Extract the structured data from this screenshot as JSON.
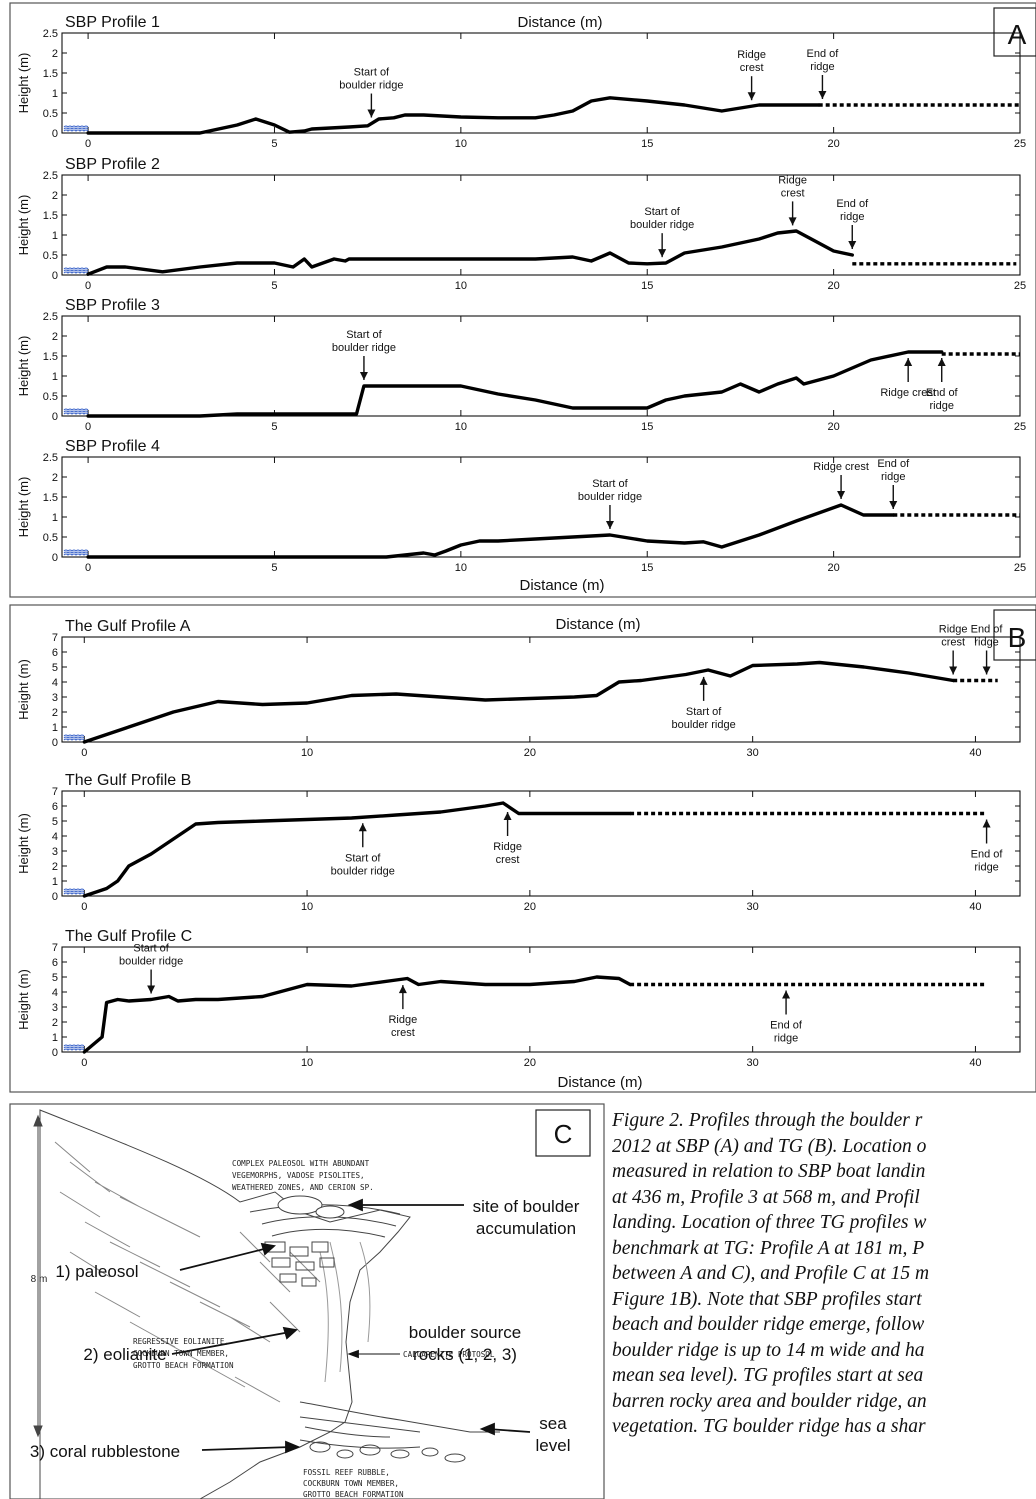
{
  "panelA": {
    "letter": "A",
    "top_xlabel": "Distance (m)",
    "bottom_xlabel": "Distance (m)",
    "ylabel": "Height (m)",
    "x_ticks": [
      "0",
      "5",
      "10",
      "15",
      "20",
      "25"
    ],
    "y_ticks": [
      "0",
      "0.5",
      "1",
      "1.5",
      "2",
      "2.5"
    ],
    "profiles": [
      {
        "title": "SBP Profile 1",
        "annotations": [
          {
            "text": "Start of\nboulder ridge",
            "x": 7.6
          },
          {
            "text": "Ridge\ncrest",
            "x": 17.8
          },
          {
            "text": "End of\nridge",
            "x": 19.7
          }
        ]
      },
      {
        "title": "SBP Profile 2",
        "annotations": [
          {
            "text": "Start of\nboulder ridge",
            "x": 15.4
          },
          {
            "text": "Ridge\ncrest",
            "x": 18.9
          },
          {
            "text": "End of\nridge",
            "x": 20.5
          }
        ]
      },
      {
        "title": "SBP Profile 3",
        "annotations": [
          {
            "text": "Start of\nboulder ridge",
            "x": 7.4
          },
          {
            "text": "Ridge crest",
            "x": 22.0
          },
          {
            "text": "End of\nridge",
            "x": 22.9
          }
        ]
      },
      {
        "title": "SBP Profile 4",
        "annotations": [
          {
            "text": "Start of\nboulder ridge",
            "x": 14.0
          },
          {
            "text": "Ridge crest",
            "x": 20.2
          },
          {
            "text": "End of\nridge",
            "x": 21.6
          }
        ]
      }
    ]
  },
  "panelB": {
    "letter": "B",
    "top_xlabel": "Distance (m)",
    "bottom_xlabel": "Distance (m)",
    "ylabel": "Height (m)",
    "x_ticks": [
      "0",
      "10",
      "20",
      "30",
      "40"
    ],
    "y_ticks": [
      "0",
      "1",
      "2",
      "3",
      "4",
      "5",
      "6",
      "7"
    ],
    "profiles": [
      {
        "title": "The Gulf Profile A",
        "annotations": [
          {
            "text": "Start of\nboulder ridge",
            "x": 27.8
          },
          {
            "text": "Ridge\ncrest",
            "x": 39.0
          },
          {
            "text": "End of\nridge",
            "x": 40.5
          }
        ]
      },
      {
        "title": "The Gulf Profile B",
        "annotations": [
          {
            "text": "Start of\nboulder ridge",
            "x": 12.5
          },
          {
            "text": "Ridge\ncrest",
            "x": 19.0
          },
          {
            "text": "End of\nridge",
            "x": 40.5
          }
        ]
      },
      {
        "title": "The Gulf Profile C",
        "annotations": [
          {
            "text": "Start of\nboulder ridge",
            "x": 3.0
          },
          {
            "text": "Ridge\ncrest",
            "x": 14.3
          },
          {
            "text": "End of\nridge",
            "x": 31.5
          }
        ]
      }
    ]
  },
  "panelC": {
    "letter": "C",
    "scale_label": "8 m",
    "labels": {
      "paleosol_desc": "COMPLEX PALEOSOL WITH ABUNDANT\nVEGEMORPHS, VADOSE PISOLITES,\nWEATHERED ZONES, AND CERION SP.",
      "site": "site of boulder\naccumulation",
      "paleosol": "1) paleosol",
      "eolianite_desc": "REGRESSIVE EOLIANITE,\nCOCKBURN TOWN MEMBER,\nGROTTO BEACH FORMATION",
      "source": "boulder source\nrocks (1, 2, 3)",
      "eolianite": "2) eolianite",
      "protosol": "CALCARENITE PROTOSOL",
      "rubblestone": "3) coral rubblestone",
      "sea_level": "sea\nlevel",
      "reef_desc": "FOSSIL REEF RUBBLE,\nCOCKBURN TOWN MEMBER,\nGROTTO BEACH FORMATION"
    }
  },
  "caption": {
    "lines": [
      "Figure 2. Profiles through the boulder r",
      "2012 at SBP (A) and TG (B). Location o",
      "measured in relation to SBP boat landin",
      "at 436 m, Profile 3 at 568 m, and Profil",
      "landing. Location of three TG profiles w",
      "benchmark at TG: Profile A at 181 m, P",
      "between A and C), and Profile C at 15 m",
      "Figure 1B). Note that SBP profiles start",
      "beach and boulder ridge emerge, follow",
      "boulder ridge is up to 14 m wide and ha",
      "mean sea level). TG profiles start at sea",
      "barren rocky area and boulder ridge, an",
      "vegetation. TG boulder ridge has a shar"
    ]
  },
  "chart_data": [
    {
      "type": "line",
      "title": "SBP Profile 1",
      "xlabel": "Distance (m)",
      "ylabel": "Height (m)",
      "xlim": [
        -0.7,
        25
      ],
      "ylim": [
        0,
        2.5
      ],
      "series": [
        {
          "name": "",
          "style": "solid",
          "x": [
            0,
            3,
            4,
            4.5,
            5,
            5.4,
            5.8,
            6,
            7,
            7.5,
            7.8,
            8.2,
            8.5,
            9,
            10,
            11,
            12,
            12.5,
            13,
            13.5,
            14,
            15,
            16,
            17,
            18,
            19.6
          ],
          "y": [
            0,
            0,
            0.2,
            0.35,
            0.2,
            0.02,
            0.05,
            0.1,
            0.15,
            0.18,
            0.35,
            0.38,
            0.45,
            0.45,
            0.4,
            0.38,
            0.38,
            0.45,
            0.55,
            0.8,
            0.88,
            0.8,
            0.7,
            0.55,
            0.7,
            0.7
          ]
        },
        {
          "name": "",
          "style": "dotted",
          "x": [
            19.6,
            25
          ],
          "y": [
            0.7,
            0.7
          ]
        }
      ]
    },
    {
      "type": "line",
      "title": "SBP Profile 2",
      "xlabel": "Distance (m)",
      "ylabel": "Height (m)",
      "xlim": [
        -0.7,
        25
      ],
      "ylim": [
        0,
        2.5
      ],
      "series": [
        {
          "name": "",
          "style": "solid",
          "x": [
            0,
            0.5,
            1,
            2,
            3,
            4,
            5,
            5.5,
            5.8,
            6,
            6.3,
            6.6,
            6.9,
            7,
            8,
            10,
            12,
            13,
            13.5,
            14,
            14.5,
            15,
            15.5,
            16,
            17,
            18,
            18.5,
            19,
            19.5,
            20,
            20.5
          ],
          "y": [
            0.02,
            0.2,
            0.2,
            0.08,
            0.2,
            0.3,
            0.3,
            0.2,
            0.4,
            0.2,
            0.3,
            0.4,
            0.35,
            0.4,
            0.4,
            0.4,
            0.4,
            0.45,
            0.35,
            0.55,
            0.3,
            0.28,
            0.3,
            0.55,
            0.7,
            0.9,
            1.05,
            1.1,
            0.85,
            0.6,
            0.5
          ]
        },
        {
          "name": "",
          "style": "dotted",
          "x": [
            20.5,
            24.9
          ],
          "y": [
            0.28,
            0.28
          ]
        }
      ]
    },
    {
      "type": "line",
      "title": "SBP Profile 3",
      "xlabel": "Distance (m)",
      "ylabel": "Height (m)",
      "xlim": [
        -0.7,
        25
      ],
      "ylim": [
        0,
        2.5
      ],
      "series": [
        {
          "name": "",
          "style": "solid",
          "x": [
            0,
            3,
            4,
            7.2,
            7.4,
            7.8,
            10,
            11,
            12,
            13,
            14,
            15,
            15.5,
            16,
            17,
            17.5,
            18,
            18.5,
            19,
            19.2,
            20,
            21,
            22,
            22.9
          ],
          "y": [
            0,
            0,
            0.05,
            0.05,
            0.75,
            0.75,
            0.75,
            0.55,
            0.4,
            0.2,
            0.2,
            0.2,
            0.4,
            0.5,
            0.6,
            0.8,
            0.6,
            0.8,
            0.95,
            0.8,
            1.0,
            1.4,
            1.6,
            1.6
          ]
        },
        {
          "name": "",
          "style": "dotted",
          "x": [
            22.9,
            25
          ],
          "y": [
            1.55,
            1.55
          ]
        }
      ]
    },
    {
      "type": "line",
      "title": "SBP Profile 4",
      "xlabel": "Distance (m)",
      "ylabel": "Height (m)",
      "xlim": [
        -0.7,
        25
      ],
      "ylim": [
        0,
        2.5
      ],
      "series": [
        {
          "name": "",
          "style": "solid",
          "x": [
            0,
            8,
            9,
            9.3,
            9.6,
            10,
            10.5,
            11,
            12,
            13,
            14,
            15,
            16,
            16.5,
            17,
            18,
            19,
            20.2,
            20.8,
            21.6
          ],
          "y": [
            0,
            0,
            0.1,
            0.05,
            0.15,
            0.3,
            0.4,
            0.4,
            0.45,
            0.5,
            0.55,
            0.4,
            0.35,
            0.38,
            0.25,
            0.55,
            0.9,
            1.3,
            1.05,
            1.05
          ]
        },
        {
          "name": "",
          "style": "dotted",
          "x": [
            21.6,
            25
          ],
          "y": [
            1.05,
            1.05
          ]
        }
      ]
    },
    {
      "type": "line",
      "title": "The Gulf Profile A",
      "xlabel": "Distance (m)",
      "ylabel": "Height (m)",
      "xlim": [
        -1,
        42
      ],
      "ylim": [
        0,
        7
      ],
      "series": [
        {
          "name": "",
          "style": "solid",
          "x": [
            0,
            2,
            4,
            6,
            8,
            10,
            12,
            14,
            16,
            18,
            20,
            22,
            23,
            24,
            25,
            26,
            27,
            28,
            29,
            30,
            32,
            33,
            35,
            37,
            39
          ],
          "y": [
            0,
            1,
            2,
            2.7,
            2.5,
            2.6,
            3.1,
            3.2,
            3.0,
            2.8,
            2.9,
            3.0,
            3.1,
            4.0,
            4.1,
            4.3,
            4.5,
            4.8,
            4.4,
            5.1,
            5.2,
            5.3,
            5.0,
            4.6,
            4.1
          ]
        },
        {
          "name": "",
          "style": "dotted",
          "x": [
            39,
            41
          ],
          "y": [
            4.1,
            4.1
          ]
        }
      ]
    },
    {
      "type": "line",
      "title": "The Gulf Profile B",
      "xlabel": "Distance (m)",
      "ylabel": "Height (m)",
      "xlim": [
        -1,
        42
      ],
      "ylim": [
        0,
        7
      ],
      "series": [
        {
          "name": "",
          "style": "solid",
          "x": [
            0,
            1,
            1.5,
            2,
            3,
            4,
            5,
            6,
            8,
            10,
            12,
            14,
            16,
            18,
            18.8,
            19.5,
            24.5
          ],
          "y": [
            0,
            0.5,
            1.0,
            2.0,
            2.8,
            3.8,
            4.8,
            4.9,
            5.0,
            5.1,
            5.2,
            5.4,
            5.6,
            6.0,
            6.2,
            5.5,
            5.5
          ]
        },
        {
          "name": "",
          "style": "dotted",
          "x": [
            24.5,
            40.5
          ],
          "y": [
            5.5,
            5.5
          ]
        }
      ]
    },
    {
      "type": "line",
      "title": "The Gulf Profile C",
      "xlabel": "Distance (m)",
      "ylabel": "Height (m)",
      "xlim": [
        -1,
        42
      ],
      "ylim": [
        0,
        7
      ],
      "series": [
        {
          "name": "",
          "style": "solid",
          "x": [
            0,
            0.8,
            1.0,
            1.5,
            2,
            3,
            3.8,
            4.2,
            5,
            6,
            8,
            10,
            12,
            14,
            14.5,
            15,
            16,
            18,
            20,
            22,
            23,
            24,
            24.5
          ],
          "y": [
            0,
            1.0,
            3.3,
            3.5,
            3.4,
            3.5,
            3.7,
            3.4,
            3.5,
            3.5,
            3.7,
            4.5,
            4.4,
            4.8,
            4.9,
            4.5,
            4.7,
            4.5,
            4.5,
            4.7,
            5.0,
            4.9,
            4.5
          ]
        },
        {
          "name": "",
          "style": "dotted",
          "x": [
            24.5,
            40.5
          ],
          "y": [
            4.5,
            4.5
          ]
        }
      ]
    }
  ]
}
